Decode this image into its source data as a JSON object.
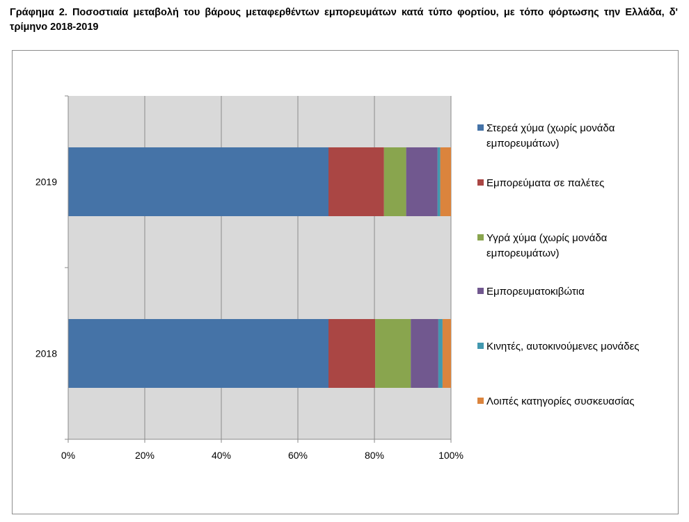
{
  "title": "Γράφημα 2. Ποσοστιαία μεταβολή του βάρους μεταφερθέντων εμπορευμάτων κατά τύπο φορτίου, με τόπο φόρτωσης την Ελλάδα, δ' τρίμηνο 2018-2019",
  "chart_data": {
    "type": "bar",
    "orientation": "horizontal",
    "stacked": "percent",
    "categories": [
      "2019",
      "2018"
    ],
    "series": [
      {
        "name": "Στερεά χύμα (χωρίς μονάδα εμπορευμάτων)",
        "color": "#4573a7",
        "values": [
          68,
          68
        ]
      },
      {
        "name": "Εμπορεύματα σε παλέτες",
        "color": "#aa4644",
        "values": [
          14.5,
          12.2
        ]
      },
      {
        "name": "Υγρά χύμα (χωρίς μονάδα εμπορευμάτων)",
        "color": "#89a54e",
        "values": [
          5.8,
          9.3
        ]
      },
      {
        "name": "Εμπορευματοκιβώτια",
        "color": "#71588f",
        "values": [
          8.2,
          7.2
        ]
      },
      {
        "name": "Κινητές, αυτοκινούμενες μονάδες",
        "color": "#4298af",
        "values": [
          0.7,
          1.1
        ]
      },
      {
        "name": "Λοιπές κατηγορίες συσκευασίας",
        "color": "#db843d",
        "values": [
          2.8,
          2.2
        ]
      }
    ],
    "xlim": [
      0,
      100
    ],
    "xticks": [
      "0%",
      "20%",
      "40%",
      "60%",
      "80%",
      "100%"
    ],
    "grid": true,
    "legend_position": "right"
  }
}
